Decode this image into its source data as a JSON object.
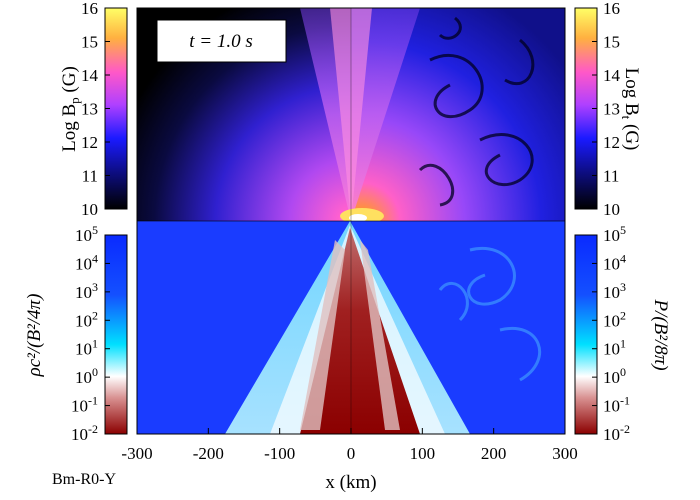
{
  "chart_data": {
    "type": "heatmap",
    "run_label": "Bm-R0-Y",
    "time_label": "t =  1.0 s",
    "xlabel": "x (km)",
    "x_ticks": [
      -300,
      -200,
      -100,
      0,
      100,
      200,
      300
    ],
    "xlim": [
      -300,
      300
    ],
    "panels": {
      "top_left": {
        "quantity": "Log Bp (G)"
      },
      "top_right": {
        "quantity": "Log Bt (G)"
      },
      "bottom_left": {
        "quantity": "ρc²/(B²/4π)"
      },
      "bottom_right": {
        "quantity": "P/(B²/8π)"
      }
    },
    "colorbars": {
      "magnetic": {
        "scale": "linear",
        "range": [
          10,
          16
        ],
        "ticks": [
          "10",
          "11",
          "12",
          "13",
          "14",
          "15",
          "16"
        ],
        "left_label": {
          "main": "Log B",
          "sub": "p",
          "unit": " (G)"
        },
        "right_label": {
          "main": "Log B",
          "sub": "t",
          "unit": " (G)"
        },
        "colors": [
          "#000000",
          "#1a1aff",
          "#b040ff",
          "#ff58c8",
          "#ffb040",
          "#ffff66"
        ]
      },
      "ratio": {
        "scale": "log",
        "range": [
          -2,
          5
        ],
        "tick_exponents": [
          "-2",
          "-1",
          "0",
          "1",
          "2",
          "3",
          "4",
          "5"
        ],
        "tick_base": "10",
        "left_label": "ρc²/(B²/4π)",
        "right_label": "P/(B²/8π)",
        "colors": [
          "#8b0000",
          "#d89090",
          "#ffffff",
          "#00e0ff",
          "#0a2aff"
        ]
      }
    }
  }
}
